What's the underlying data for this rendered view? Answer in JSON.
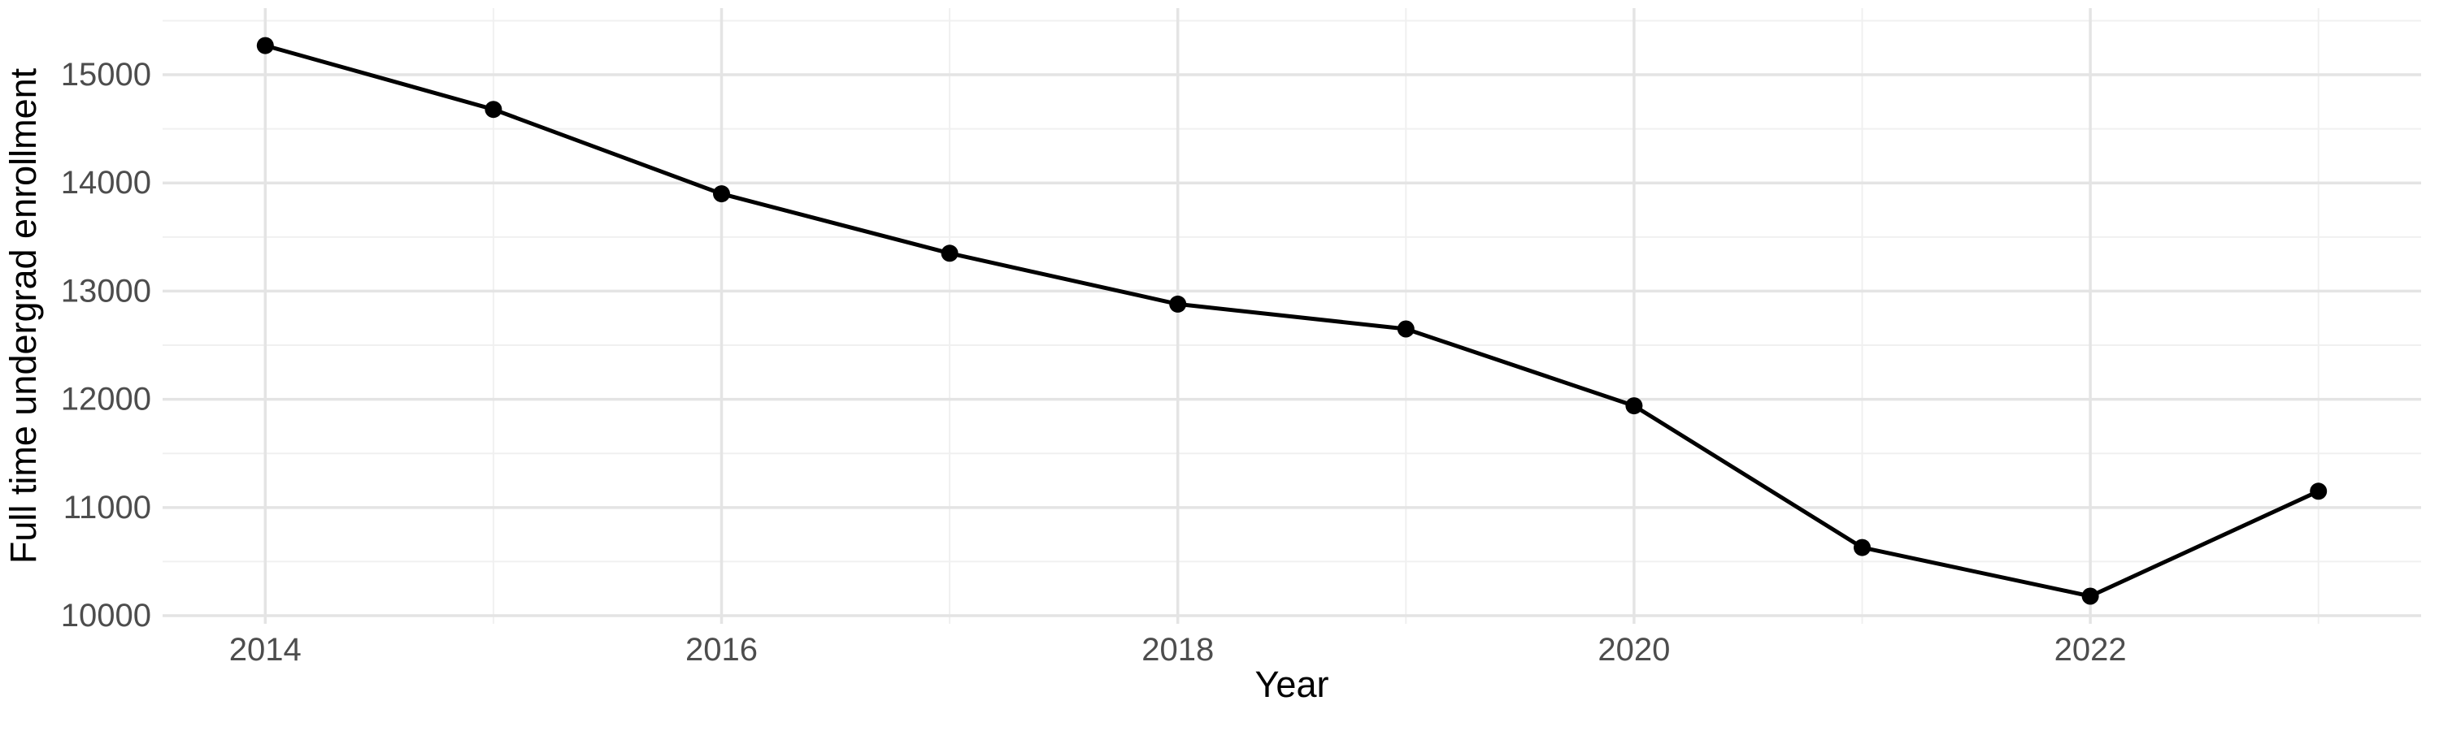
{
  "page": {
    "background": "#ffffff"
  },
  "chart_data": {
    "type": "line",
    "title": "",
    "xlabel": "Year",
    "ylabel": "Full time undergrad enrollment",
    "x": [
      2014,
      2015,
      2016,
      2017,
      2018,
      2019,
      2020,
      2021,
      2022,
      2023
    ],
    "values": [
      15270,
      14680,
      13900,
      13350,
      12880,
      12650,
      11940,
      10630,
      10180,
      11150
    ],
    "x_major_ticks": [
      2014,
      2016,
      2018,
      2020,
      2022
    ],
    "x_major_tick_labels": [
      "2014",
      "2016",
      "2018",
      "2020",
      "2022"
    ],
    "x_minor_ticks": [
      2015,
      2017,
      2019,
      2021,
      2023
    ],
    "y_major_ticks": [
      10000,
      11000,
      12000,
      13000,
      14000,
      15000
    ],
    "y_major_tick_labels": [
      "10000",
      "11000",
      "12000",
      "13000",
      "14000",
      "15000"
    ],
    "y_minor_ticks": [
      10500,
      11500,
      12500,
      13500,
      14500,
      15500
    ],
    "xlim": [
      2013.55,
      2023.45
    ],
    "ylim": [
      9925,
      15616
    ],
    "grid": "major+minor",
    "legend": "none",
    "colors": {
      "line": "#000000",
      "point": "#000000",
      "grid_major": "#e4e4e4",
      "grid_minor": "#f0f0f0",
      "tick_label": "#4d4d4d",
      "axis_title": "#000000",
      "background": "#ffffff"
    }
  }
}
